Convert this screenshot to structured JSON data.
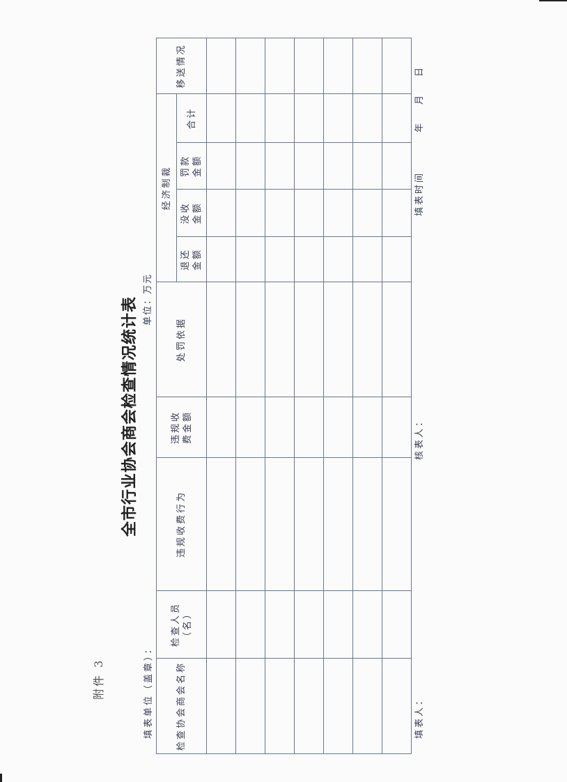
{
  "attachment": "附件 3",
  "title": "全市行业协会商会检查情况统计表",
  "filling_unit_label": "填表单位（盖章）：",
  "unit_label": "单位：万元",
  "table": {
    "headers": {
      "association_name": "检查协会商会名称",
      "inspectors_line1": "检查人员",
      "inspectors_line2": "（名）",
      "violation_behavior": "违规收费行为",
      "violation_amount_line1": "违规收",
      "violation_amount_line2": "费金额",
      "penalty_basis": "处罚依据",
      "economic_sanctions": "经济制裁",
      "refund_line1": "退还",
      "refund_line2": "金额",
      "confiscation_line1": "没收",
      "confiscation_line2": "金额",
      "fine_line1": "罚款",
      "fine_line2": "金额",
      "total": "合计",
      "transfer_status": "移送情况"
    },
    "rows": [
      [],
      [],
      [],
      [],
      [],
      [],
      []
    ]
  },
  "footer": {
    "filler": "填表人：",
    "reviewer": "核表人：",
    "fill_time": "填表时间",
    "year": "年",
    "month": "月",
    "day": "日"
  }
}
